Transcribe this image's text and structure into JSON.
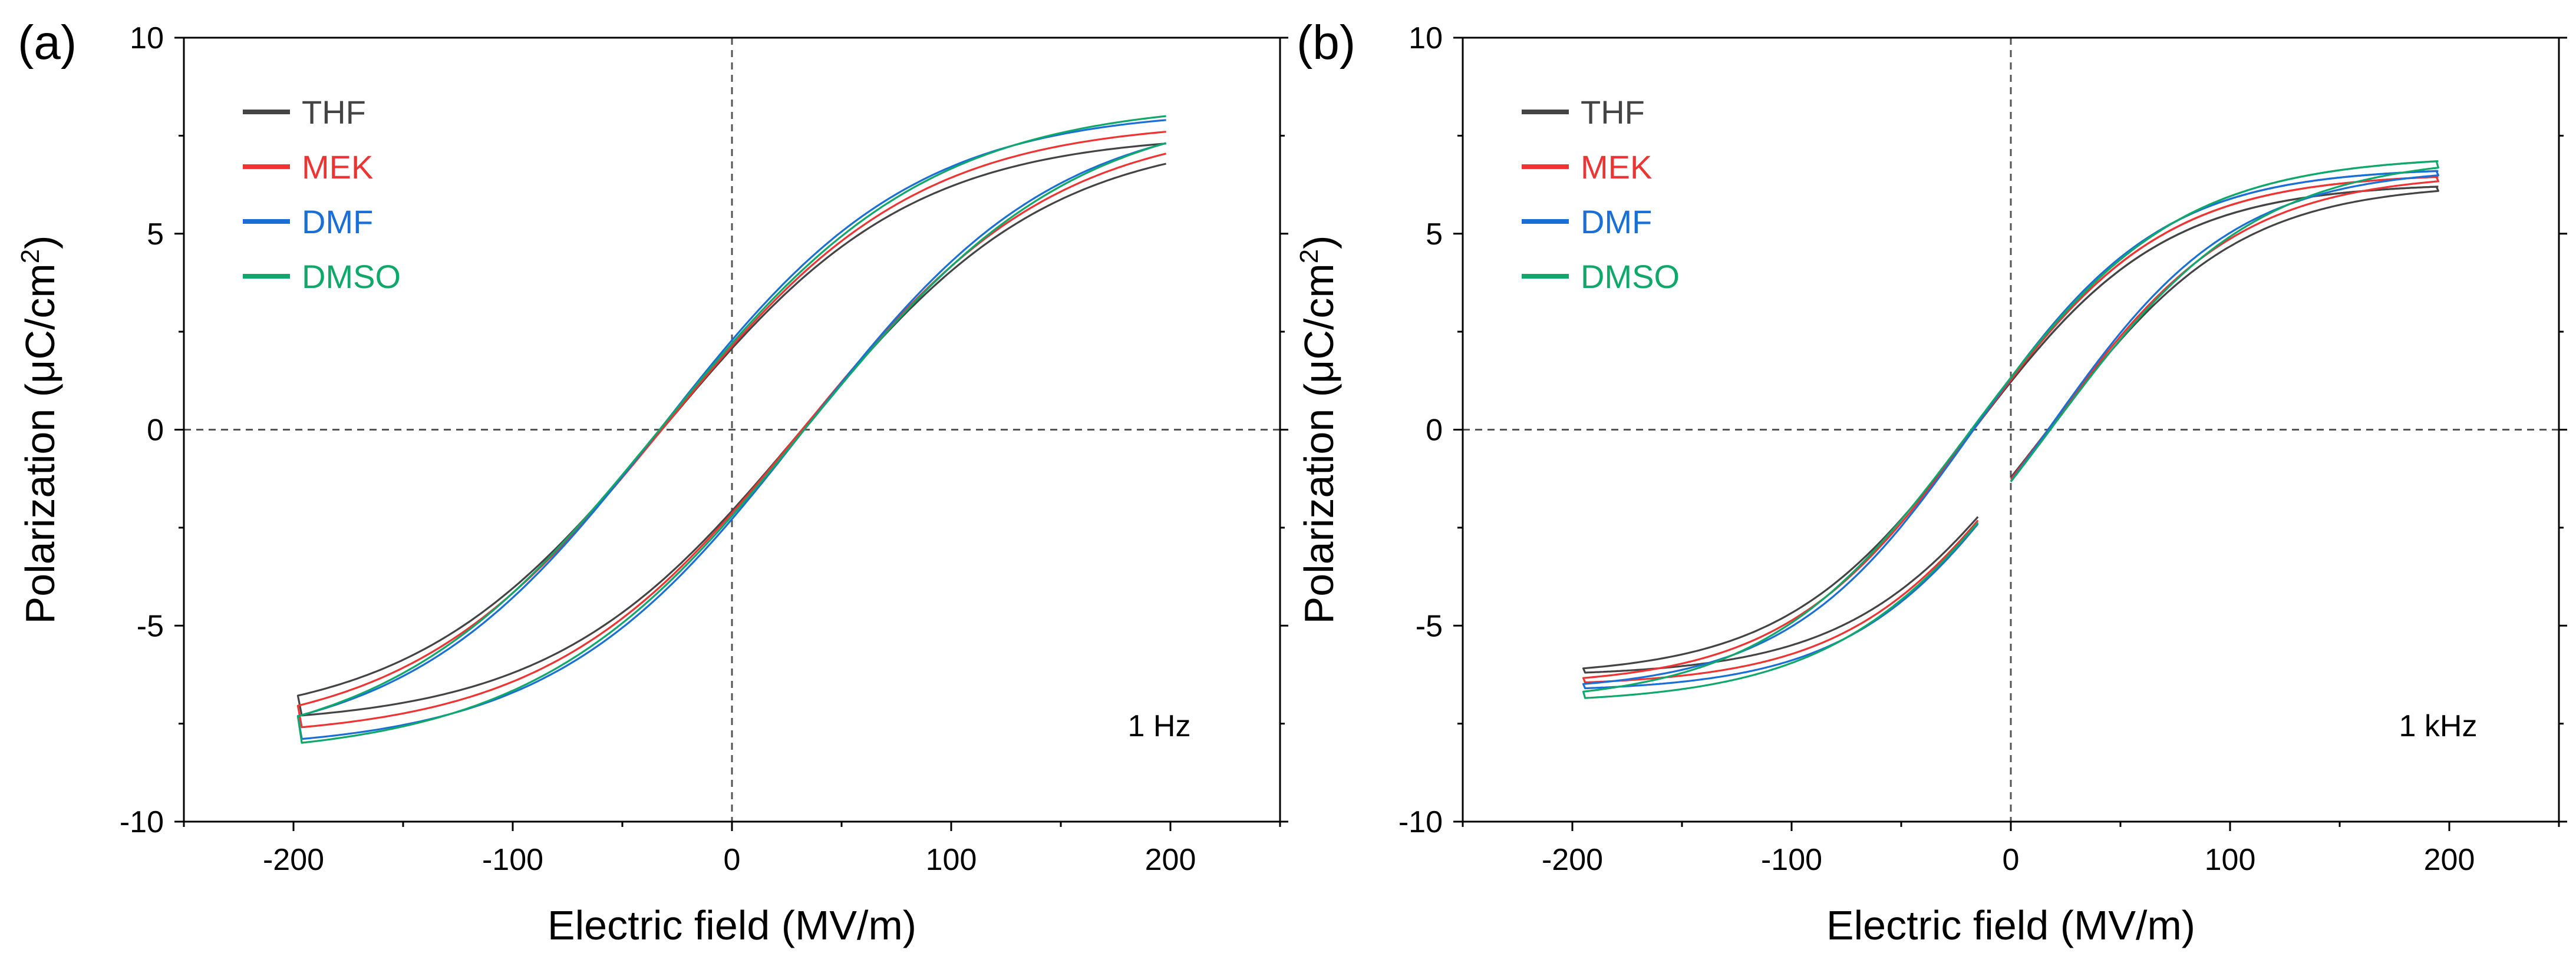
{
  "chart_data": [
    {
      "panel_label": "(a)",
      "type": "line",
      "xlabel": "Electric field (MV/m)",
      "ylabel_main": "Polarization (μC/cm",
      "ylabel_sup": "2",
      "ylabel_end": ")",
      "annotation": "1 Hz",
      "xlim": [
        -250,
        250
      ],
      "ylim": [
        -10,
        10
      ],
      "xticks": [
        -200,
        -100,
        0,
        100,
        200
      ],
      "yticks": [
        -10,
        -5,
        0,
        5,
        10
      ],
      "legend_position": "top-left",
      "series": [
        {
          "name": "THF",
          "color": "#444444",
          "e_max": 198,
          "p_max": 7.3,
          "p_r": 2.0,
          "e_c": 32,
          "e_turn": 198
        },
        {
          "name": "MEK",
          "color": "#ee3333",
          "e_max": 198,
          "p_max": 7.6,
          "p_r": 2.05,
          "e_c": 32,
          "e_turn": 198
        },
        {
          "name": "DMF",
          "color": "#1a6fd6",
          "e_max": 198,
          "p_max": 7.9,
          "p_r": 2.2,
          "e_c": 33,
          "e_turn": 198
        },
        {
          "name": "DMSO",
          "color": "#10a86a",
          "e_max": 198,
          "p_max": 8.0,
          "p_r": 2.1,
          "e_c": 33,
          "e_turn": 198
        }
      ]
    },
    {
      "panel_label": "(b)",
      "type": "line",
      "xlabel": "Electric field (MV/m)",
      "ylabel_main": "Polarization (μC/cm",
      "ylabel_sup": "2",
      "ylabel_end": ")",
      "annotation": "1 kHz",
      "xlim": [
        -250,
        250
      ],
      "ylim": [
        -10,
        10
      ],
      "xticks": [
        -200,
        -100,
        0,
        100,
        200
      ],
      "yticks": [
        -10,
        -5,
        0,
        5,
        10
      ],
      "legend_position": "top-left",
      "series": [
        {
          "name": "THF",
          "color": "#444444",
          "e_max": 195,
          "p_max": 6.2,
          "p_r": 1.2,
          "e_c": 17,
          "e_turn": 15
        },
        {
          "name": "MEK",
          "color": "#ee3333",
          "e_max": 195,
          "p_max": 6.45,
          "p_r": 1.25,
          "e_c": 17,
          "e_turn": 15
        },
        {
          "name": "DMF",
          "color": "#1a6fd6",
          "e_max": 195,
          "p_max": 6.6,
          "p_r": 1.3,
          "e_c": 17,
          "e_turn": 15
        },
        {
          "name": "DMSO",
          "color": "#10a86a",
          "e_max": 195,
          "p_max": 6.85,
          "p_r": 1.3,
          "e_c": 18,
          "e_turn": 15
        }
      ]
    }
  ]
}
